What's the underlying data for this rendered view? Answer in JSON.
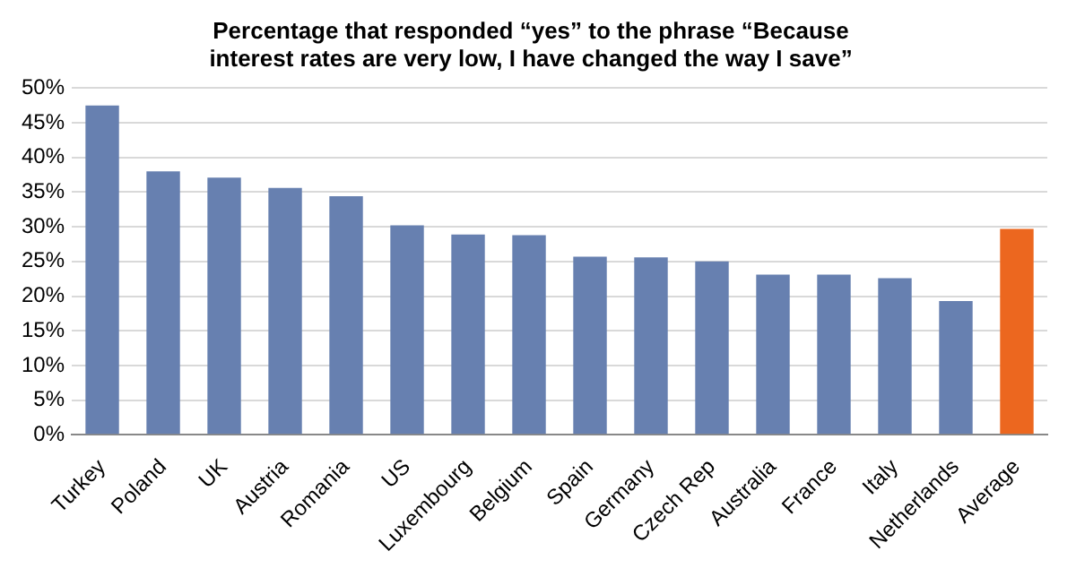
{
  "chart_data": {
    "type": "bar",
    "title": "Percentage that responded “yes” to the phrase “Because interest rates are very low, I have changed the way I save”",
    "categories": [
      "Turkey",
      "Poland",
      "UK",
      "Austria",
      "Romania",
      "US",
      "Luxembourg",
      "Belgium",
      "Spain",
      "Germany",
      "Czech Rep",
      "Australia",
      "France",
      "Italy",
      "Netherlands",
      "Average"
    ],
    "values": [
      47.5,
      38.0,
      37.1,
      35.6,
      34.4,
      30.2,
      28.9,
      28.8,
      25.7,
      25.6,
      25.0,
      23.1,
      23.1,
      22.6,
      19.3,
      29.7
    ],
    "colors": [
      "#6780b0",
      "#6780b0",
      "#6780b0",
      "#6780b0",
      "#6780b0",
      "#6780b0",
      "#6780b0",
      "#6780b0",
      "#6780b0",
      "#6780b0",
      "#6780b0",
      "#6780b0",
      "#6780b0",
      "#6780b0",
      "#6780b0",
      "#ec671f"
    ],
    "ylim": [
      0,
      50
    ],
    "yticks": [
      {
        "value": 0,
        "label": "0%"
      },
      {
        "value": 5,
        "label": "5%"
      },
      {
        "value": 10,
        "label": "10%"
      },
      {
        "value": 15,
        "label": "15%"
      },
      {
        "value": 20,
        "label": "20%"
      },
      {
        "value": 25,
        "label": "25%"
      },
      {
        "value": 30,
        "label": "30%"
      },
      {
        "value": 35,
        "label": "35%"
      },
      {
        "value": 40,
        "label": "40%"
      },
      {
        "value": 45,
        "label": "45%"
      },
      {
        "value": 50,
        "label": "50%"
      }
    ],
    "grid": "y",
    "legend": false
  }
}
